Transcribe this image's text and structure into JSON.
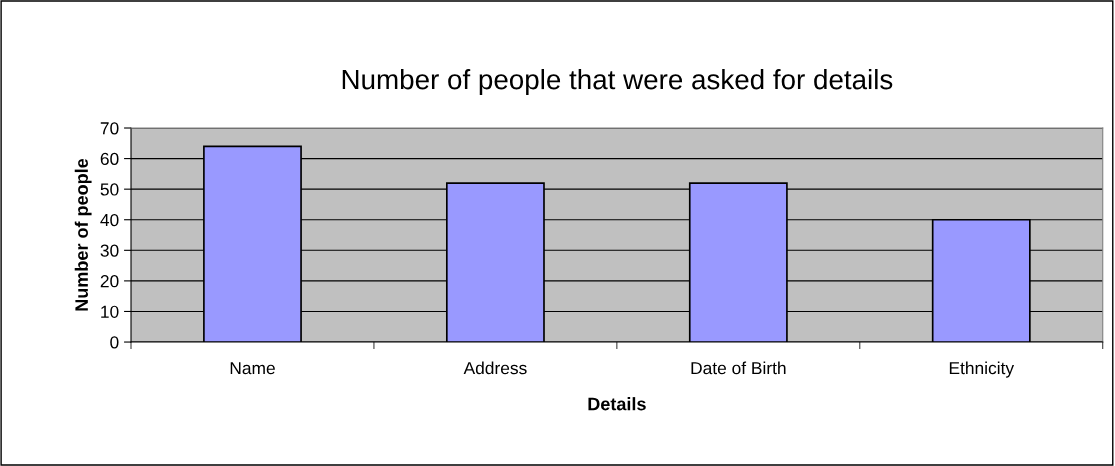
{
  "chart_data": {
    "type": "bar",
    "title": "Number of people that were asked for details",
    "xlabel": "Details",
    "ylabel": "Number of people",
    "categories": [
      "Name",
      "Address",
      "Date of Birth",
      "Ethnicity"
    ],
    "values": [
      64,
      52,
      52,
      40
    ],
    "color": "#9999ff",
    "ylim": [
      0,
      70
    ],
    "yticks": [
      0,
      10,
      20,
      30,
      40,
      50,
      60,
      70
    ],
    "grid": "y",
    "legend": false
  }
}
